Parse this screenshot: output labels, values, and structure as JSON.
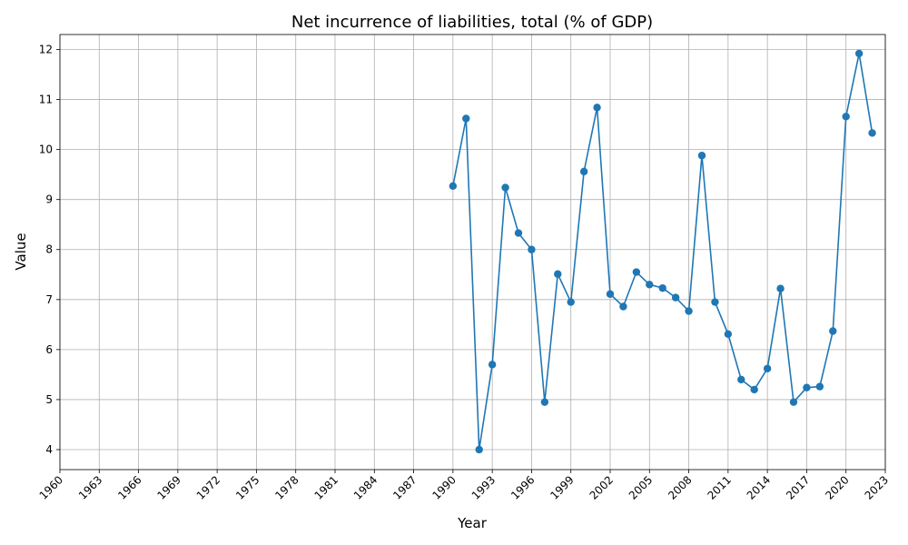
{
  "chart_data": {
    "type": "line",
    "title": "Net incurrence of liabilities, total (% of GDP)",
    "xlabel": "Year",
    "ylabel": "Value",
    "xlim": [
      1960,
      2023
    ],
    "ylim": [
      3.6,
      12.3
    ],
    "x_ticks": [
      "1960",
      "1963",
      "1966",
      "1969",
      "1972",
      "1975",
      "1978",
      "1981",
      "1984",
      "1987",
      "1990",
      "1993",
      "1996",
      "1999",
      "2002",
      "2005",
      "2008",
      "2011",
      "2014",
      "2017",
      "2020",
      "2023"
    ],
    "y_ticks": [
      "4",
      "5",
      "6",
      "7",
      "8",
      "9",
      "10",
      "11",
      "12"
    ],
    "grid": true,
    "marker": "circle",
    "series": [
      {
        "color": "#1f77b4",
        "x": [
          1990,
          1991,
          1992,
          1993,
          1994,
          1995,
          1996,
          1997,
          1998,
          1999,
          2000,
          2001,
          2002,
          2003,
          2004,
          2005,
          2006,
          2007,
          2008,
          2009,
          2010,
          2011,
          2012,
          2013,
          2014,
          2015,
          2016,
          2017,
          2018,
          2019,
          2020,
          2021,
          2022
        ],
        "values": [
          9.27,
          10.62,
          4.0,
          5.7,
          9.24,
          8.33,
          8.0,
          4.95,
          7.51,
          6.95,
          9.56,
          10.84,
          7.11,
          6.86,
          7.55,
          7.3,
          7.23,
          7.04,
          6.77,
          9.88,
          6.95,
          6.31,
          5.4,
          5.2,
          5.62,
          7.22,
          4.95,
          5.24,
          5.26,
          6.37,
          10.66,
          11.92,
          10.33
        ]
      }
    ]
  }
}
